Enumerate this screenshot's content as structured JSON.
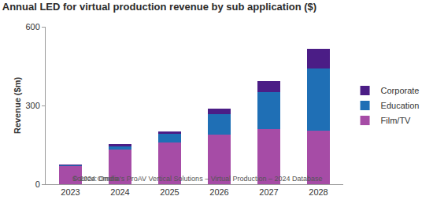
{
  "chart_data": {
    "type": "bar",
    "title": "Annual LED for virtual production revenue by sub application ($)",
    "y_label": "Revenue ($m)",
    "categories": [
      "2023",
      "2024",
      "2025",
      "2026",
      "2027",
      "2028"
    ],
    "series": [
      {
        "name": "Film/TV",
        "color": "#a64ca6",
        "values": [
          68,
          133,
          160,
          190,
          210,
          205
        ]
      },
      {
        "name": "Education",
        "color": "#1f6fb5",
        "values": [
          3,
          12,
          32,
          78,
          142,
          235
        ]
      },
      {
        "name": "Corporate",
        "color": "#4b1d86",
        "values": [
          3,
          7,
          10,
          20,
          41,
          75
        ]
      }
    ],
    "stacked": true,
    "ylim": [
      0,
      600
    ],
    "yticks": [
      0,
      300,
      600
    ],
    "grid": false,
    "legend": "right",
    "annotations": [
      "Source: Omdia's ProAV Vertical Solutions – Virtual Production – 2024 Database",
      "© 2024 Omdia"
    ]
  }
}
